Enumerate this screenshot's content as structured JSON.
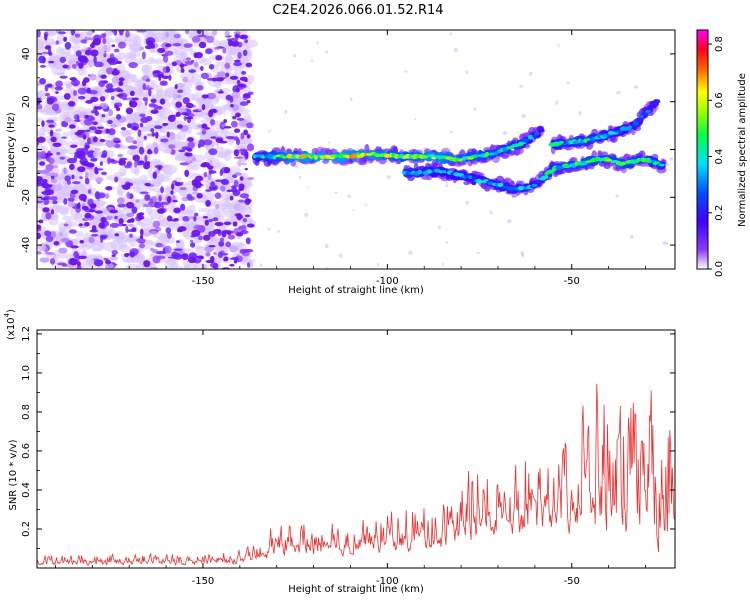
{
  "chart_data": [
    {
      "type": "heatmap",
      "title": "C2E4.2026.066.01.52.R14",
      "xlabel": "Height of straight line (km)",
      "ylabel": "Frequency (Hz)",
      "xlim": [
        -195,
        -22
      ],
      "ylim": [
        -50,
        50
      ],
      "xticks": [
        -150,
        -100,
        -50
      ],
      "yticks": [
        -40,
        -20,
        0,
        20,
        40
      ],
      "noise_region": {
        "x_range": [
          -195,
          -137
        ],
        "y_range": [
          -50,
          50
        ],
        "amplitude_range": [
          0.02,
          0.14
        ]
      },
      "series": [
        {
          "name": "main-track",
          "points": [
            [
              -136,
              -3
            ],
            [
              -128,
              -3
            ],
            [
              -120,
              -3
            ],
            [
              -112,
              -3
            ],
            [
              -104,
              -2
            ],
            [
              -96,
              -3
            ],
            [
              -88,
              -3
            ],
            [
              -80,
              -4
            ],
            [
              -72,
              -2
            ],
            [
              -64,
              2
            ],
            [
              -58,
              8
            ]
          ],
          "amplitudes": [
            0.42,
            0.66,
            0.72,
            0.72,
            0.7,
            0.6,
            0.7,
            0.62,
            0.55,
            0.48,
            0.3
          ]
        },
        {
          "name": "lower-track",
          "points": [
            [
              -95,
              -10
            ],
            [
              -85,
              -9
            ],
            [
              -65,
              -17
            ],
            [
              -60,
              -15
            ],
            [
              -55,
              -8
            ],
            [
              -48,
              -6
            ],
            [
              -42,
              -4
            ],
            [
              -36,
              -6
            ],
            [
              -30,
              -4
            ],
            [
              -25,
              -7
            ]
          ],
          "amplitudes": [
            0.5,
            0.38,
            0.45,
            0.4,
            0.5,
            0.6,
            0.55,
            0.6,
            0.5,
            0.45
          ]
        },
        {
          "name": "upper-track",
          "points": [
            [
              -55,
              2
            ],
            [
              -46,
              4
            ],
            [
              -40,
              6
            ],
            [
              -33,
              10
            ],
            [
              -27,
              20
            ]
          ],
          "amplitudes": [
            0.45,
            0.5,
            0.45,
            0.35,
            0.3
          ]
        }
      ],
      "colorbar": {
        "label": "Normalized spectral amplitude",
        "range": [
          0,
          0.85
        ],
        "ticks": [
          0.0,
          0.2,
          0.4,
          0.6,
          0.8
        ],
        "tick_labels": [
          "0.0",
          "0.2",
          "0.4",
          "0.6",
          "0.8"
        ],
        "colors": [
          "#ffffff",
          "#7000ff",
          "#0000ff",
          "#00ffff",
          "#00ff00",
          "#ffff00",
          "#ff8000",
          "#ff0000",
          "#ff00ff"
        ]
      }
    },
    {
      "type": "line",
      "title": "",
      "xlabel": "Height of straight line (km)",
      "ylabel": "SNR (10 * v/v)",
      "scale_label": "(x10",
      "scale_exponent": "4",
      "scale_close": ")",
      "xlim": [
        -195,
        -22
      ],
      "ylim": [
        0,
        12200
      ],
      "xticks": [
        -150,
        -100,
        -50
      ],
      "yticks": [
        2000,
        4000,
        6000,
        8000,
        10000,
        12000
      ],
      "ytick_labels": [
        "0.2",
        "0.4",
        "0.6",
        "0.8",
        "1.0",
        "1.2"
      ],
      "color": "#ee3030",
      "envelope": [
        [
          -195,
          100,
          800
        ],
        [
          -160,
          100,
          900
        ],
        [
          -145,
          150,
          1000
        ],
        [
          -137,
          200,
          1200
        ],
        [
          -132,
          400,
          2500
        ],
        [
          -125,
          500,
          2800
        ],
        [
          -115,
          500,
          3000
        ],
        [
          -105,
          600,
          3000
        ],
        [
          -95,
          700,
          3800
        ],
        [
          -85,
          800,
          4000
        ],
        [
          -80,
          1000,
          5500
        ],
        [
          -75,
          1200,
          6500
        ],
        [
          -70,
          1400,
          6000
        ],
        [
          -63,
          1500,
          7500
        ],
        [
          -55,
          1500,
          8500
        ],
        [
          -50,
          1500,
          9500
        ],
        [
          -45,
          1500,
          12200
        ],
        [
          -40,
          1000,
          10800
        ],
        [
          -35,
          800,
          10000
        ],
        [
          -30,
          600,
          10500
        ],
        [
          -25,
          300,
          11000
        ],
        [
          -22,
          200,
          9500
        ]
      ]
    }
  ]
}
